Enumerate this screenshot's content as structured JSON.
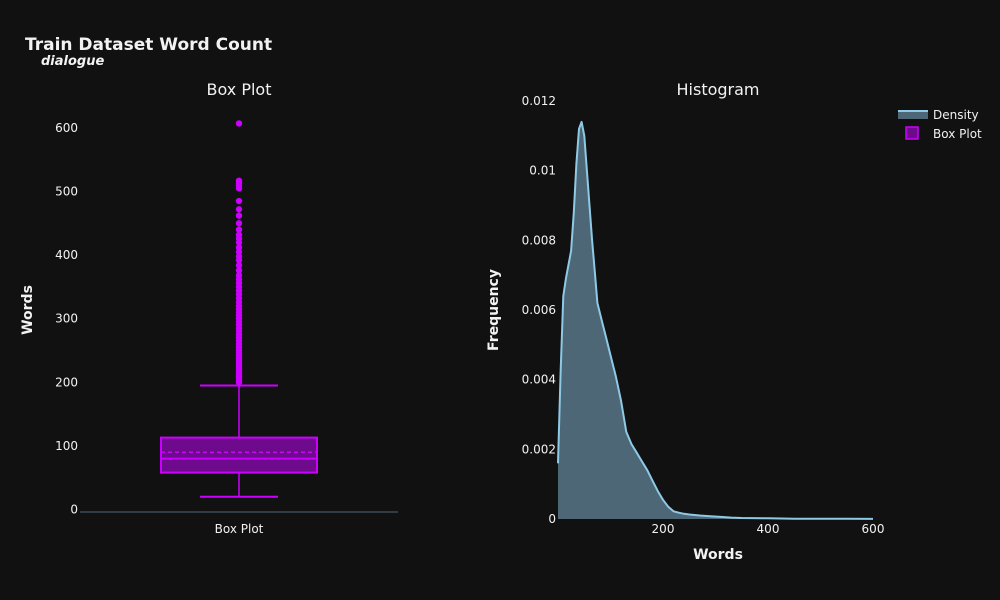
{
  "title": "Train Dataset Word Count",
  "subtitle": "dialogue",
  "colors": {
    "background": "#111111",
    "box": "#cc00ff",
    "box_fill": "#6e0a8c",
    "density_line": "#8ecae6",
    "density_fill": "#4d6777",
    "axis_line": "#3d4a57"
  },
  "legend": {
    "placement": "top-right",
    "items": [
      "Density",
      "Box Plot"
    ]
  },
  "chart_data": [
    {
      "type": "box",
      "title": "Box Plot",
      "ylabel": "Words",
      "categories": [
        "Box Plot"
      ],
      "ylim": [
        -15,
        625
      ],
      "yticks": [
        0,
        100,
        200,
        300,
        400,
        500,
        600
      ],
      "tick_labels": [
        "0",
        "100",
        "200",
        "300",
        "400",
        "500",
        "600"
      ],
      "series": [
        {
          "name": "Box Plot",
          "min": 20,
          "q1": 58,
          "median": 80,
          "mean": 90,
          "q3": 113,
          "max": 195,
          "outliers": [
            200,
            203,
            206,
            209,
            212,
            215,
            218,
            222,
            226,
            230,
            234,
            238,
            242,
            246,
            250,
            255,
            260,
            265,
            270,
            275,
            280,
            285,
            290,
            295,
            300,
            305,
            310,
            315,
            320,
            326,
            332,
            338,
            344,
            350,
            356,
            362,
            368,
            376,
            384,
            392,
            398,
            405,
            412,
            420,
            426,
            432,
            440,
            450,
            462,
            472,
            485,
            505,
            510,
            513,
            517,
            607
          ]
        }
      ]
    },
    {
      "type": "area",
      "title": "Histogram",
      "xlabel": "Words",
      "ylabel": "Frequency",
      "xlim": [
        0,
        600
      ],
      "ylim": [
        0,
        0.012
      ],
      "xticks": [
        200,
        400,
        600
      ],
      "xtick_labels": [
        "200",
        "400",
        "600"
      ],
      "yticks": [
        0,
        0.002,
        0.004,
        0.006,
        0.008,
        0.01,
        0.012
      ],
      "ytick_labels": [
        "0",
        "0.002",
        "0.004",
        "0.006",
        "0.008",
        "0.01",
        "0.012"
      ],
      "series": [
        {
          "name": "Density",
          "x": [
            0,
            5,
            10,
            15,
            20,
            25,
            30,
            35,
            40,
            45,
            50,
            55,
            60,
            65,
            70,
            75,
            80,
            85,
            90,
            95,
            100,
            110,
            120,
            130,
            140,
            150,
            160,
            170,
            180,
            190,
            200,
            210,
            220,
            230,
            240,
            250,
            270,
            290,
            310,
            330,
            350,
            400,
            450,
            500,
            550,
            600
          ],
          "y": [
            0.0016,
            0.0042,
            0.0064,
            0.0069,
            0.0073,
            0.0077,
            0.0088,
            0.0102,
            0.0112,
            0.0114,
            0.011,
            0.01,
            0.009,
            0.008,
            0.0071,
            0.0062,
            0.0059,
            0.0056,
            0.0053,
            0.005,
            0.0047,
            0.0041,
            0.0034,
            0.0025,
            0.00215,
            0.0019,
            0.00165,
            0.0014,
            0.0011,
            0.0008,
            0.00055,
            0.00035,
            0.00022,
            0.00018,
            0.00015,
            0.00013,
            0.0001,
            8e-05,
            6e-05,
            4e-05,
            3e-05,
            2e-05,
            1e-05,
            1e-05,
            5e-06,
            2e-06
          ]
        }
      ]
    }
  ]
}
